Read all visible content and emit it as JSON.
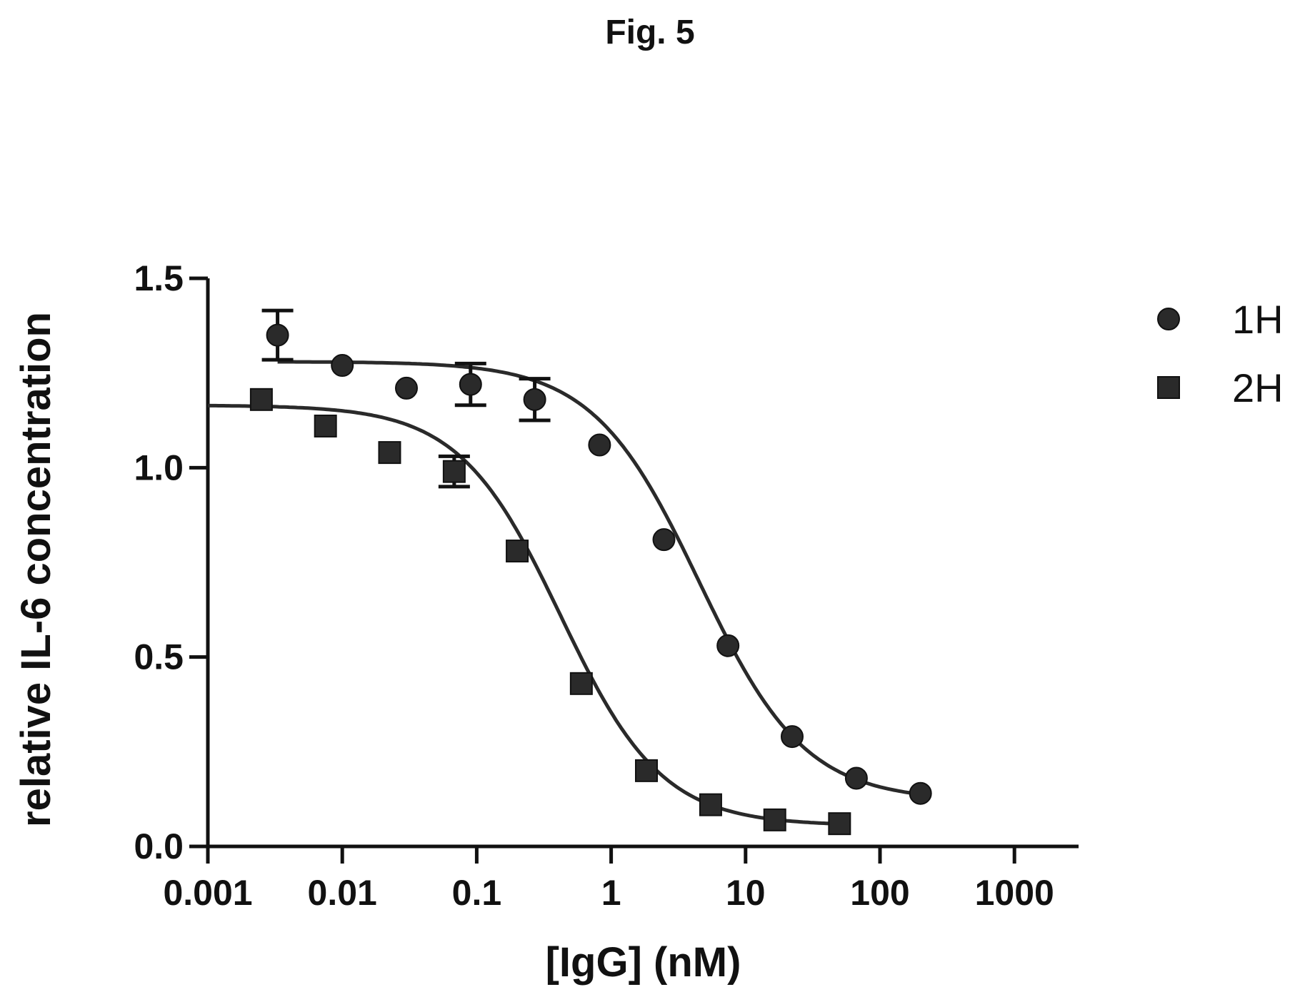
{
  "figure_title": "Fig. 5",
  "chart_data": {
    "type": "scatter",
    "title": "",
    "xlabel": "[IgG] (nM)",
    "ylabel": "relative IL-6 concentration",
    "x_scale": "log",
    "xlim": [
      0.001,
      3000
    ],
    "ylim": [
      0,
      1.5
    ],
    "x_ticks": [
      0.001,
      0.01,
      0.1,
      1,
      10,
      100,
      1000
    ],
    "x_tick_labels": [
      "0.001",
      "0.01",
      "0.1",
      "1",
      "10",
      "100",
      "1000"
    ],
    "y_ticks": [
      0,
      0.5,
      1.0,
      1.5
    ],
    "y_tick_labels": [
      "0.0",
      "0.5",
      "1.0",
      "1.5"
    ],
    "grid": false,
    "legend_position": "top-right",
    "series": [
      {
        "name": "1H",
        "marker": "circle",
        "color": "#2a2a2a",
        "x": [
          0.0033,
          0.01,
          0.03,
          0.09,
          0.27,
          0.82,
          2.47,
          7.4,
          22.2,
          66.7,
          200
        ],
        "y": [
          1.35,
          1.27,
          1.21,
          1.22,
          1.18,
          1.06,
          0.81,
          0.53,
          0.29,
          0.18,
          0.14
        ],
        "error": [
          0.065,
          0,
          0,
          0.055,
          0.055,
          0,
          0,
          0,
          0,
          0,
          0
        ],
        "fit": {
          "top": 1.28,
          "bottom": 0.12,
          "ec50": 4.5,
          "hill": 1.1,
          "x_range": [
            0.0033,
            200
          ]
        }
      },
      {
        "name": "2H",
        "marker": "square",
        "color": "#2a2a2a",
        "x": [
          0.0025,
          0.0075,
          0.0225,
          0.068,
          0.2,
          0.6,
          1.83,
          5.5,
          16.5,
          50
        ],
        "y": [
          1.18,
          1.11,
          1.04,
          0.99,
          0.78,
          0.43,
          0.2,
          0.11,
          0.07,
          0.06
        ],
        "error": [
          0,
          0,
          0,
          0.04,
          0,
          0,
          0,
          0,
          0,
          0
        ],
        "fit": {
          "top": 1.165,
          "bottom": 0.055,
          "ec50": 0.42,
          "hill": 1.15,
          "x_range": [
            0.001,
            50
          ]
        }
      }
    ]
  }
}
